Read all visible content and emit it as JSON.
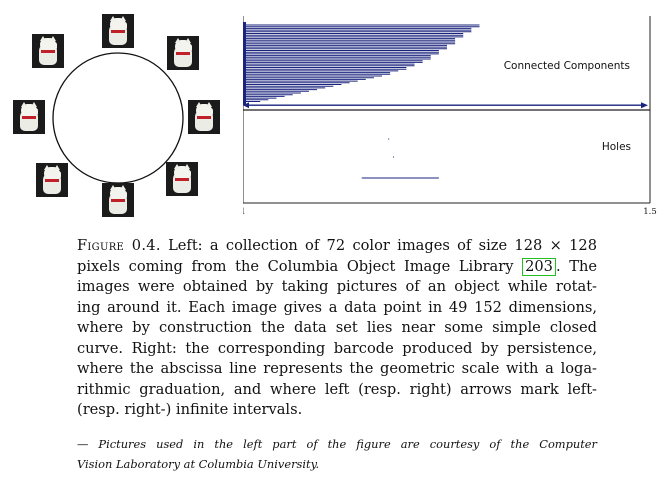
{
  "left_figure": {
    "photo_count_shown": 8
  },
  "barcode": {
    "labels": {
      "connected": "Connected Components",
      "holes": "Holes"
    },
    "axis_ticks": [
      "1",
      "1.5"
    ],
    "colors": {
      "bar": "#1a237e",
      "axis": "#222222"
    },
    "chart_data": {
      "type": "barcode",
      "x_range": [
        1,
        1.5
      ],
      "panels": [
        {
          "name": "Connected Components",
          "interval_ends": [
            1.29,
            1.29,
            1.28,
            1.28,
            1.28,
            1.27,
            1.27,
            1.27,
            1.26,
            1.26,
            1.26,
            1.26,
            1.25,
            1.25,
            1.25,
            1.24,
            1.24,
            1.24,
            1.23,
            1.23,
            1.23,
            1.22,
            1.22,
            1.21,
            1.21,
            1.2,
            1.2,
            1.19,
            1.18,
            1.18,
            1.17,
            1.16,
            1.15,
            1.14,
            1.13,
            1.12,
            1.11,
            1.1,
            1.09,
            1.08,
            1.07,
            1.06,
            1.05,
            1.04,
            1.03,
            1.02
          ],
          "infinite_interval": true
        },
        {
          "name": "Holes",
          "intervals": [
            [
              1.1775,
              1.1776
            ],
            [
              1.1835,
              1.1836
            ],
            [
              1.145,
              1.24
            ]
          ]
        }
      ]
    }
  },
  "caption": {
    "label": "Figure 0.4.",
    "lines": [
      "Left: a collection of 72 color images of size 128 × 128",
      "pixels coming from the Columbia Object Image Library",
      "203",
      ". The",
      "images were obtained by taking pictures of an object while rotat-",
      "ing around it. Each image gives a data point in 49 152 dimensions,",
      "where by construction the data set lies near some simple closed",
      "curve. Right: the corresponding barcode produced by persistence,",
      "where the abscissa line represents the geometric scale with a loga-",
      "rithmic graduation, and where left (resp. right) arrows mark left-",
      "(resp. right-) infinite intervals."
    ],
    "credit_lines": [
      "— Pictures used in the left part of the figure are courtesy of the Computer",
      "Vision Laboratory at Columbia University."
    ]
  }
}
